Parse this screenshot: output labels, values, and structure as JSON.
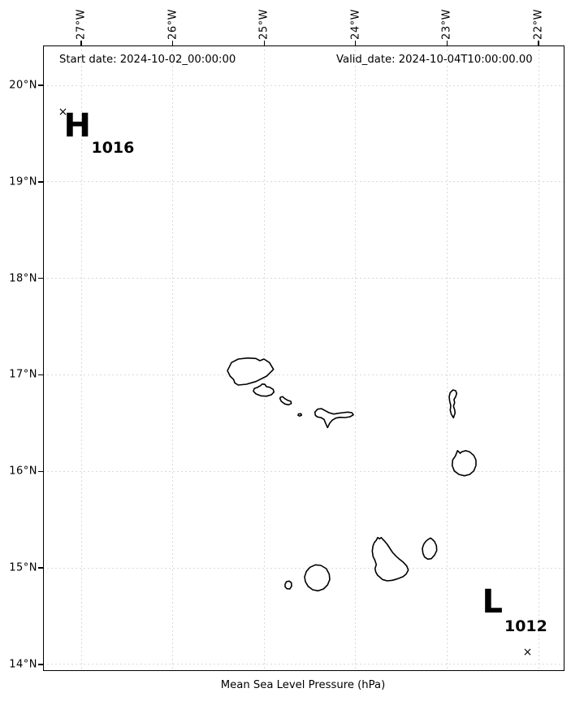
{
  "figure": {
    "xlabel": "Mean Sea Level Pressure (hPa)",
    "annotations": {
      "start_date": "Start date: 2024-10-02_00:00:00",
      "valid_date": "Valid_date: 2024-10-04T10:00:00.00"
    }
  },
  "axes": {
    "x_tick_labels": [
      "27°W",
      "26°W",
      "25°W",
      "24°W",
      "23°W",
      "22°W"
    ],
    "y_tick_labels": [
      "20°N",
      "19°N",
      "18°N",
      "17°N",
      "16°N",
      "15°N",
      "14°N"
    ],
    "grid": true
  },
  "chart_data": {
    "type": "scatter",
    "title": "",
    "xlabel": "Mean Sea Level Pressure (hPa)",
    "x_ticks_deg_west": [
      27,
      26,
      25,
      24,
      23,
      22
    ],
    "y_ticks_deg_north": [
      20,
      19,
      18,
      17,
      16,
      15,
      14
    ],
    "xlim_deg_west": [
      27.4,
      21.7
    ],
    "ylim_deg_north": [
      13.94,
      20.4
    ],
    "grid": true,
    "features": "island coastline outlines",
    "points": [
      {
        "symbol": "H",
        "pressure_hpa": 1016,
        "lon_deg_west": 27.2,
        "lat_deg_north": 19.72
      },
      {
        "symbol": "L",
        "pressure_hpa": 1012,
        "lon_deg_west": 22.12,
        "lat_deg_north": 14.13
      }
    ]
  },
  "pressure_centers": [
    {
      "type": "high",
      "symbol": "H",
      "value": "1016",
      "lon_deg_west": 27.2,
      "lat_deg_north": 19.72
    },
    {
      "type": "low",
      "symbol": "L",
      "value": "1012",
      "lon_deg_west": 22.12,
      "lat_deg_north": 14.13
    }
  ],
  "colors": {
    "background": "#ffffff",
    "coastline": "#000000",
    "grid": "#d9d9d9",
    "text": "#000000"
  },
  "island_outlines": [
    "M280,456.3 L285,446.3 293.3,442 305,440.7 315,441.3 320,444 325,442 331.7,446.3 336.7,454.7 328.3,463 315,469.7 303.3,473 293.3,474 289,471.3 287.7,467.3 283.3,463 Z",
    "M312,481.7 L313,478.3 317.3,476.7 320.7,474.7 323,472.7 326.3,473.3 328,476 332,476.7 336.3,479.3 337.3,482.7 334,486 328,487.7 321.3,487.3 315.3,485 Z",
    "M344.7,490.7 L345.3,489 348,488.3 350.7,490.7 354,492.7 358,494 358.7,496.7 355.3,498.3 350.7,497.3 346.3,494 Z",
    "M367.5,509.5 L370.5,509.3 371.3,511 369,512.2 367,511.3 Z",
    "M388.3,511.3 L387.7,507.3 391,503.7 395.7,503 400,505.3 405,508 411,509.7 416.7,508.7 422.3,508 428.3,507.3 433.3,508 435,510.7 431,513 425,514 418.3,513.7 413.3,514.7 409,517.3 405.7,521.3 403.3,526.3 401,521.3 399,516.3 395,514 391,513.3 Z",
    "M557.7,480 L561,481 562.3,484.3 561,488.3 559,491.7 559.7,495.7 558.3,500 559.7,504.3 560.3,508.3 558.3,514.3 555.7,510 554.3,505 555,499 553.7,494.3 553,488.3 554.3,483.3 Z",
    "M563.3,554.7 L566.7,558 568.3,556.3 573.3,554.7 578.3,556.3 583.3,560.7 586,566.3 586,573 583.3,579.7 578.3,584 571.7,585.7 565,584 559.3,579.7 556.7,573 557.3,566.3 560.7,561.3 562,558 Z",
    "M463.3,665 L465,661.7 467.3,663.3 469.3,661.7 471.7,664.3 474,666.7 476.7,670 480,675 483.3,680 487.3,684.3 491.7,688.3 496.7,692.3 500.7,696.7 502.7,701.7 500,706.7 496,710 490,712.3 483.3,714.3 476.7,715 470.7,713.3 468.3,711 465,708.3 462.7,704.3 461.7,700 463.3,695 461.7,690 459.3,685 458.3,678.3 459.3,671.7 461,667.7 Z",
    "M526.7,664.3 L530,662.3 532.7,664.3 535,666.7 537.3,671.7 537.7,677.7 535,683.3 531,687.7 526.7,688.3 522.7,685.7 520.7,681 520,675 521.7,670 524,666.7 Z",
    "M375,710 L377.3,703.3 381.7,698.3 388.3,695.3 395,696 401.7,700 405.3,706.7 406,713.3 403.3,720 398.3,725 391.7,727.3 385,726 379.3,721.7 376,716 Z",
    "M351,719.3 L352.7,716 356,715.3 358.7,717.3 359,721.7 356.7,725 353.3,724.7 351,722.3 Z"
  ]
}
